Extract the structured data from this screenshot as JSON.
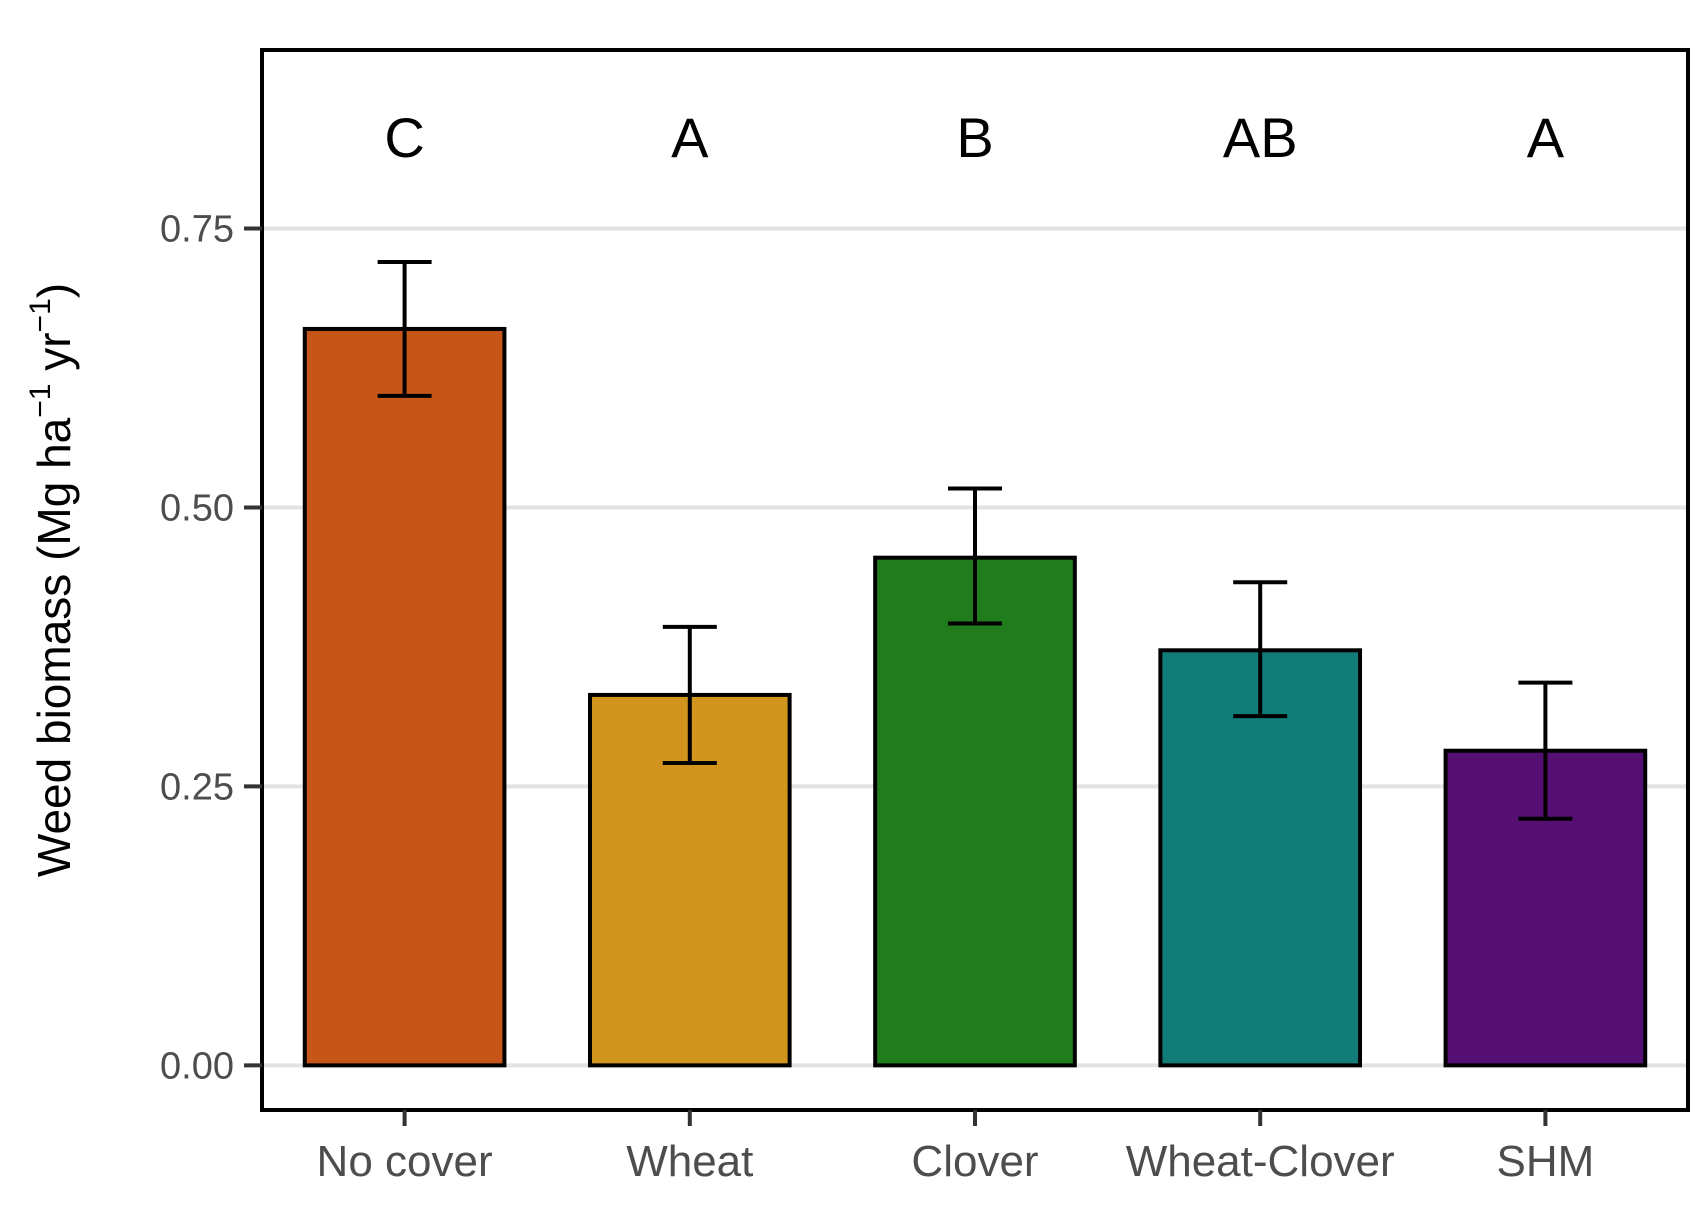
{
  "chart_data": {
    "type": "bar",
    "title": "",
    "xlabel": "",
    "ylabel": {
      "main": "Weed biomass (Mg ha",
      "sup1": "−1",
      "mid": " yr",
      "sup2": "−1",
      "end": ")"
    },
    "ylim": [
      -0.04,
      0.91
    ],
    "yticks": [
      0.0,
      0.25,
      0.5,
      0.75
    ],
    "ytick_labels": [
      "0.00",
      "0.25",
      "0.50",
      "0.75"
    ],
    "grid": "horizontal",
    "legend": "none",
    "categories": [
      "No cover",
      "Wheat",
      "Clover",
      "Wheat-Clover",
      "SHM"
    ],
    "values": [
      0.66,
      0.332,
      0.455,
      0.372,
      0.282
    ],
    "error_low": [
      0.6,
      0.271,
      0.396,
      0.313,
      0.221
    ],
    "error_high": [
      0.72,
      0.393,
      0.517,
      0.433,
      0.343
    ],
    "group_letters": [
      "C",
      "A",
      "B",
      "AB",
      "A"
    ],
    "colors": [
      "#C55519",
      "#D1941C",
      "#217C1D",
      "#127C78",
      "#560F72"
    ]
  }
}
